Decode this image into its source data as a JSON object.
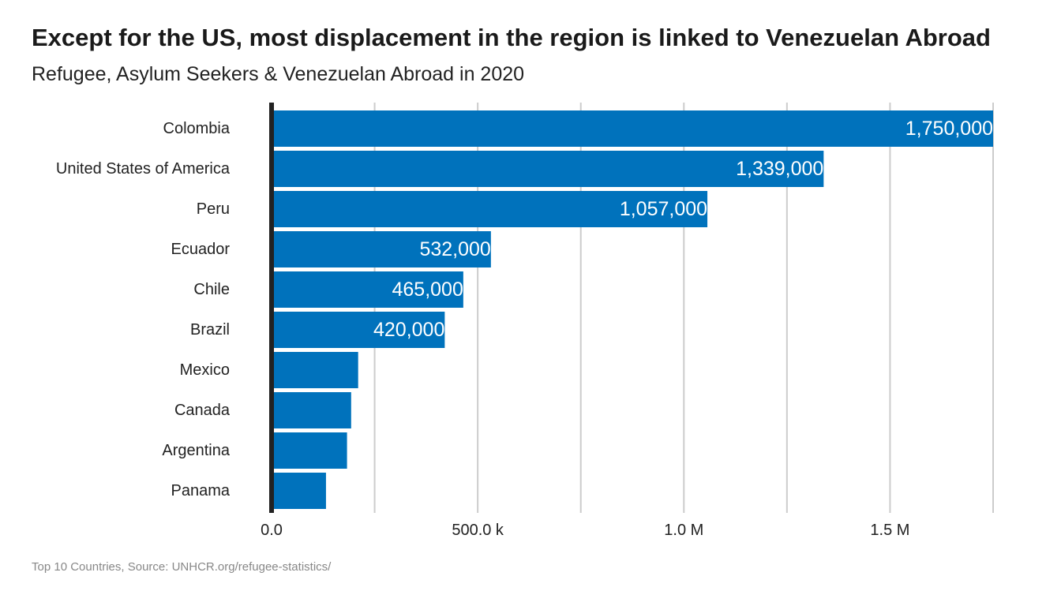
{
  "title": "Except for the US, most displacement in the region is linked to Venezuelan Abroad",
  "subtitle": "Refugee, Asylum Seekers & Venezuelan Abroad in 2020",
  "caption": "Top 10 Countries, Source: UNHCR.org/refugee-statistics/",
  "colors": {
    "bar": "#0072bc",
    "grid": "#cccccc",
    "axis": "#222222"
  },
  "chart_data": {
    "type": "bar",
    "orientation": "horizontal",
    "categories": [
      "Colombia",
      "United States of America",
      "Peru",
      "Ecuador",
      "Chile",
      "Brazil",
      "Mexico",
      "Canada",
      "Argentina",
      "Panama"
    ],
    "values": [
      1750000,
      1339000,
      1057000,
      532000,
      465000,
      420000,
      210000,
      193000,
      183000,
      132000
    ],
    "data_labels": [
      "1,750,000",
      "1,339,000",
      "1,057,000",
      "532,000",
      "465,000",
      "420,000",
      "",
      "",
      "",
      ""
    ],
    "xlim": [
      0,
      1750000
    ],
    "x_ticks": [
      0,
      500000,
      1000000,
      1500000
    ],
    "x_tick_labels": [
      "0.0",
      "500.0 k",
      "1.0 M",
      "1.5 M"
    ],
    "minor_gridlines": [
      250000,
      750000,
      1250000,
      1750000
    ],
    "grid": true,
    "legend": "none"
  }
}
